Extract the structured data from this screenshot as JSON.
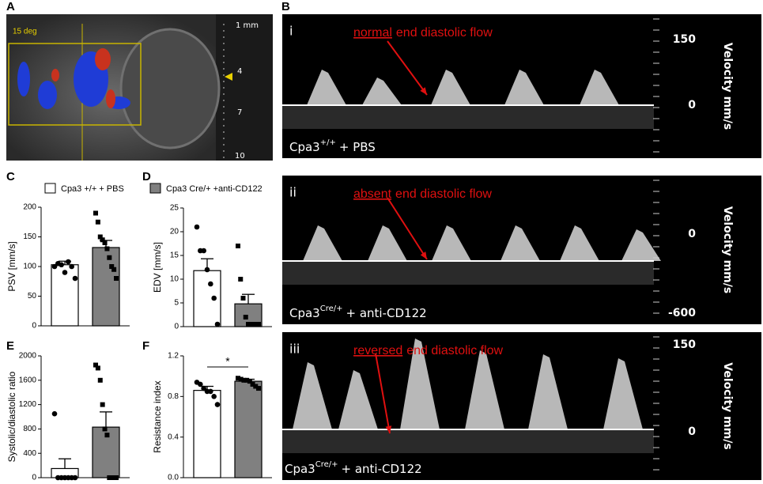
{
  "figure": {
    "panel_labels": [
      "A",
      "B",
      "C",
      "D",
      "E",
      "F"
    ],
    "panel_a": {
      "angle_label": "15 deg",
      "depth_ticks": [
        "1 mm",
        "4",
        "7",
        "10"
      ]
    },
    "panel_b": [
      {
        "numeral": "i",
        "annotation_key": "normal",
        "annotation_rest": "end diastolic flow",
        "scale": [
          "150",
          "0"
        ],
        "axis_title": "Velocity mm/s",
        "condition": {
          "base": "Cpa3",
          "sup": "+/+",
          "rest": "+ PBS"
        }
      },
      {
        "numeral": "ii",
        "annotation_key": "absent",
        "annotation_rest": "end diastolic flow",
        "scale": [
          "0",
          "-600"
        ],
        "axis_title": "Velocity mm/s",
        "condition": {
          "base": "Cpa3",
          "sup": "Cre/+",
          "rest": "+ anti-CD122"
        }
      },
      {
        "numeral": "iii",
        "annotation_key": "reversed",
        "annotation_rest": "end diastolic flow",
        "scale": [
          "150",
          "0"
        ],
        "axis_title": "Velocity mm/s",
        "condition": {
          "base": "Cpa3",
          "sup": "Cre/+",
          "rest": "+ anti-CD122"
        }
      }
    ]
  },
  "chart_data": [
    {
      "type": "bar",
      "ylabel": "PSV [mm/s]",
      "ylim": [
        0,
        200
      ],
      "yticks": [
        0,
        50,
        100,
        150,
        200
      ],
      "series": [
        {
          "name": "Cpa3 +/+ + PBS",
          "color": "#ffffff",
          "marker": "circle",
          "values": [
            103
          ],
          "errors": [
            6
          ],
          "points": [
            100,
            105,
            103,
            90,
            108,
            100,
            80
          ]
        },
        {
          "name": "Cpa3 Cre/+ +anti-CD122",
          "color": "#808080",
          "marker": "square",
          "values": [
            132
          ],
          "errors": [
            12
          ],
          "points": [
            190,
            175,
            150,
            145,
            140,
            130,
            115,
            100,
            95,
            80
          ]
        }
      ]
    },
    {
      "type": "bar",
      "ylabel": "EDV [mm/s]",
      "ylim": [
        0,
        25
      ],
      "yticks": [
        0,
        5,
        10,
        15,
        20,
        25
      ],
      "series": [
        {
          "color": "#ffffff",
          "marker": "circle",
          "values": [
            11.8
          ],
          "errors": [
            2.5
          ],
          "points": [
            21,
            16,
            16,
            12,
            9,
            6,
            0.5
          ]
        },
        {
          "color": "#808080",
          "marker": "square",
          "values": [
            4.8
          ],
          "errors": [
            2
          ],
          "points": [
            17,
            10,
            6,
            2,
            0.5,
            0.5,
            0.5,
            0.5,
            0.5
          ]
        }
      ]
    },
    {
      "type": "bar",
      "ylabel": "Systolic/diastolic ratio",
      "ylim": [
        0,
        2000
      ],
      "yticks": [
        0,
        400,
        800,
        1200,
        1600,
        2000
      ],
      "series": [
        {
          "color": "#ffffff",
          "marker": "circle",
          "values": [
            150
          ],
          "errors": [
            160
          ],
          "points": [
            1050,
            0,
            0,
            0,
            0,
            0,
            0
          ]
        },
        {
          "color": "#808080",
          "marker": "square",
          "values": [
            830
          ],
          "errors": [
            250
          ],
          "points": [
            1850,
            1800,
            1600,
            1200,
            800,
            700,
            0,
            0,
            0,
            0
          ]
        }
      ]
    },
    {
      "type": "bar",
      "ylabel": "Resistance index",
      "ylim": [
        0,
        1.2
      ],
      "yticks": [
        {
          "value": 0,
          "label": "0.0"
        },
        0.4,
        0.8,
        {
          "value": 1.2,
          "label": "1.2"
        }
      ],
      "annotation": "*",
      "series": [
        {
          "color": "#ffffff",
          "marker": "circle",
          "values": [
            0.86
          ],
          "errors": [
            0.04
          ],
          "points": [
            0.94,
            0.92,
            0.88,
            0.85,
            0.85,
            0.8,
            0.72
          ]
        },
        {
          "color": "#808080",
          "marker": "square",
          "values": [
            0.95
          ],
          "errors": [
            0.02
          ],
          "points": [
            0.98,
            0.97,
            0.96,
            0.96,
            0.95,
            0.92,
            0.9,
            0.88
          ]
        }
      ]
    }
  ]
}
